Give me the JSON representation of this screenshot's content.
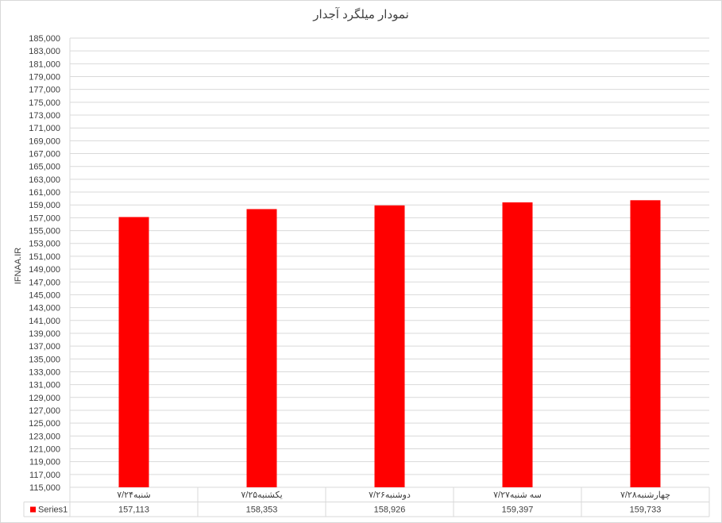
{
  "chart_data": {
    "type": "bar",
    "title": "نمودار میلگرد آجدار",
    "ylabel": "IFNAA.IR",
    "xlabel": "",
    "categories": [
      "شنبه۷/۲۴",
      "یکشنبه۷/۲۵",
      "دوشنبه۷/۲۶",
      "سه شنبه۷/۲۷",
      "چهارشنبه۷/۲۸"
    ],
    "series": [
      {
        "name": "Series1",
        "values": [
          157113,
          158353,
          158926,
          159397,
          159733
        ]
      }
    ],
    "ylim": [
      115000,
      185000
    ],
    "ytick_step": 2000,
    "grid": true,
    "legend": "data-table",
    "data_table": true,
    "colors": {
      "bar": "#ff0000",
      "grid": "#d9d9d9",
      "text": "#404040"
    }
  }
}
